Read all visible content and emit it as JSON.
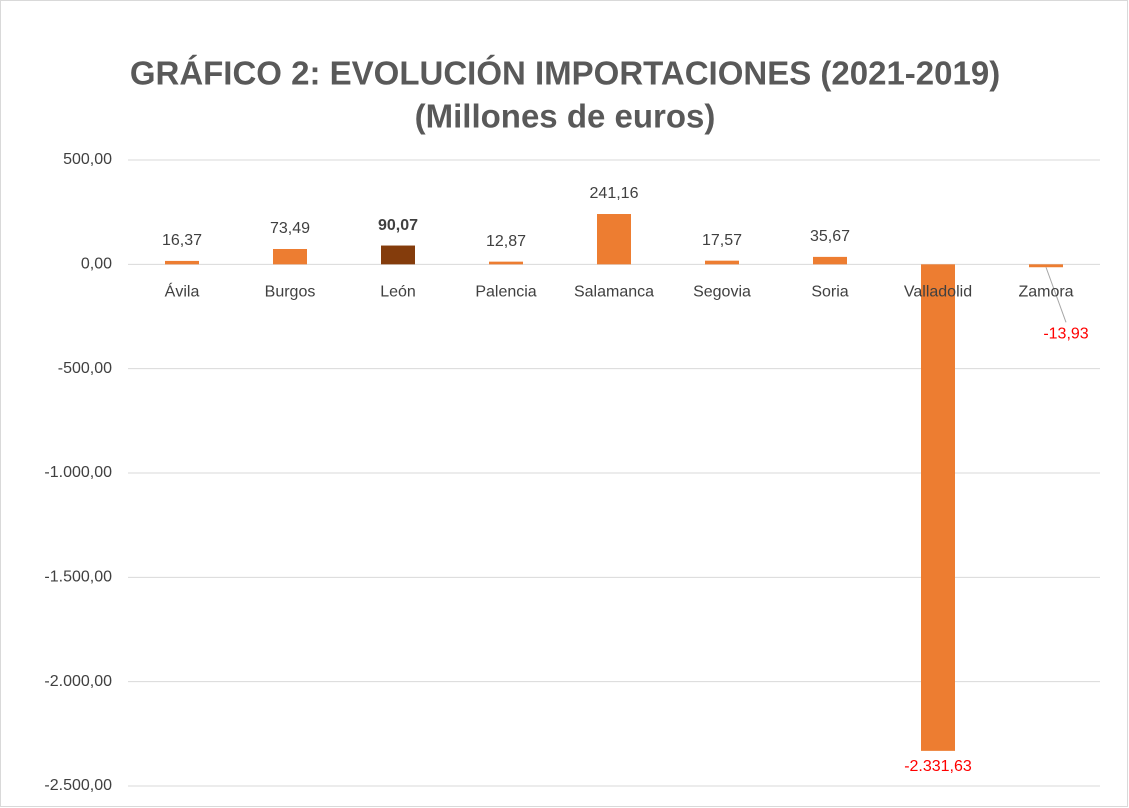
{
  "chart_data": {
    "type": "bar",
    "title": "GRÁFICO 2: EVOLUCIÓN IMPORTACIONES (2021-2019)",
    "subtitle": "(Millones de euros)",
    "categories": [
      "Ávila",
      "Burgos",
      "León",
      "Palencia",
      "Salamanca",
      "Segovia",
      "Soria",
      "Valladolid",
      "Zamora"
    ],
    "values": [
      16.37,
      73.49,
      90.07,
      12.87,
      241.16,
      17.57,
      35.67,
      -2331.63,
      -13.93
    ],
    "value_labels": [
      "16,37",
      "73,49",
      "90,07",
      "12,87",
      "241,16",
      "17,57",
      "35,67",
      "-2.331,63",
      "-13,93"
    ],
    "colors": [
      "#ed7d31",
      "#ed7d31",
      "#843c0c",
      "#ed7d31",
      "#ed7d31",
      "#ed7d31",
      "#ed7d31",
      "#ed7d31",
      "#ed7d31"
    ],
    "value_label_bold": [
      false,
      false,
      true,
      false,
      false,
      false,
      false,
      false,
      false
    ],
    "negative_label_color": "#ff0000",
    "ylim": [
      -2500,
      500
    ],
    "yticks": [
      {
        "value": 500,
        "label": "500,00"
      },
      {
        "value": 0,
        "label": "0,00"
      },
      {
        "value": -500,
        "label": "-500,00"
      },
      {
        "value": -1000,
        "label": "-1.000,00"
      },
      {
        "value": -1500,
        "label": "-1.500,00"
      },
      {
        "value": -2000,
        "label": "-2.000,00"
      },
      {
        "value": -2500,
        "label": "-2.500,00"
      }
    ],
    "grid": true
  }
}
